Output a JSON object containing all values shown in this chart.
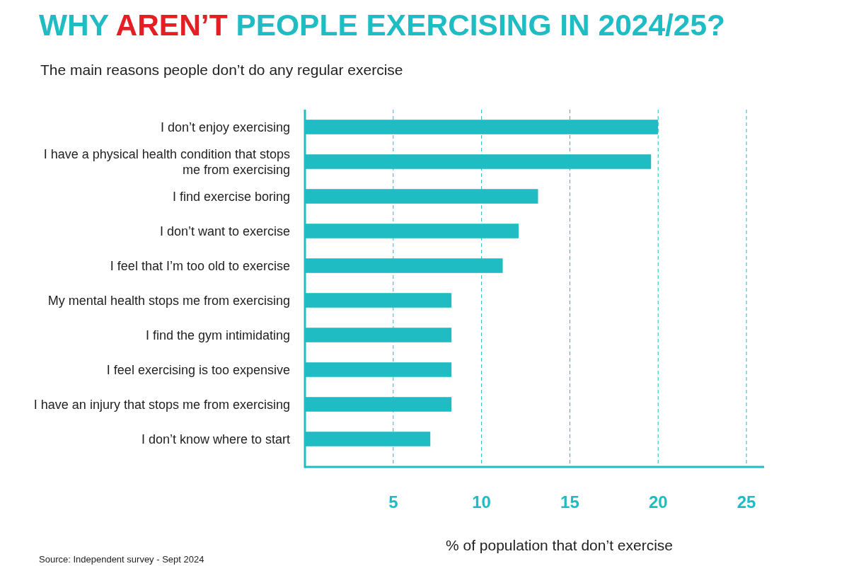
{
  "chart_data": {
    "type": "bar",
    "orientation": "horizontal",
    "title": "WHY AREN’T PEOPLE EXERCISING IN 2024/25?",
    "subtitle": "The main reasons people don’t do any regular exercise",
    "categories": [
      "I don’t enjoy exercising",
      "I have a physical health condition that stops me from exercising",
      "I find exercise boring",
      "I don’t want to exercise",
      "I feel that I’m too old to exercise",
      "My mental health stops me from exercising",
      "I find the gym intimidating",
      "I feel exercising is too expensive",
      "I have an injury that stops me from exercising",
      "I don’t know where to start"
    ],
    "values": [
      20.0,
      19.6,
      13.2,
      12.1,
      11.2,
      8.3,
      8.3,
      8.3,
      8.3,
      7.1
    ],
    "color": "#1fbcc4",
    "xlim": [
      0,
      26
    ],
    "xticks": [
      5,
      10,
      15,
      20,
      25
    ],
    "grid": "x",
    "xlabel": "% of population that don’t exercise",
    "annotations": [
      "Source: Independent survey - Sept 2024"
    ]
  }
}
